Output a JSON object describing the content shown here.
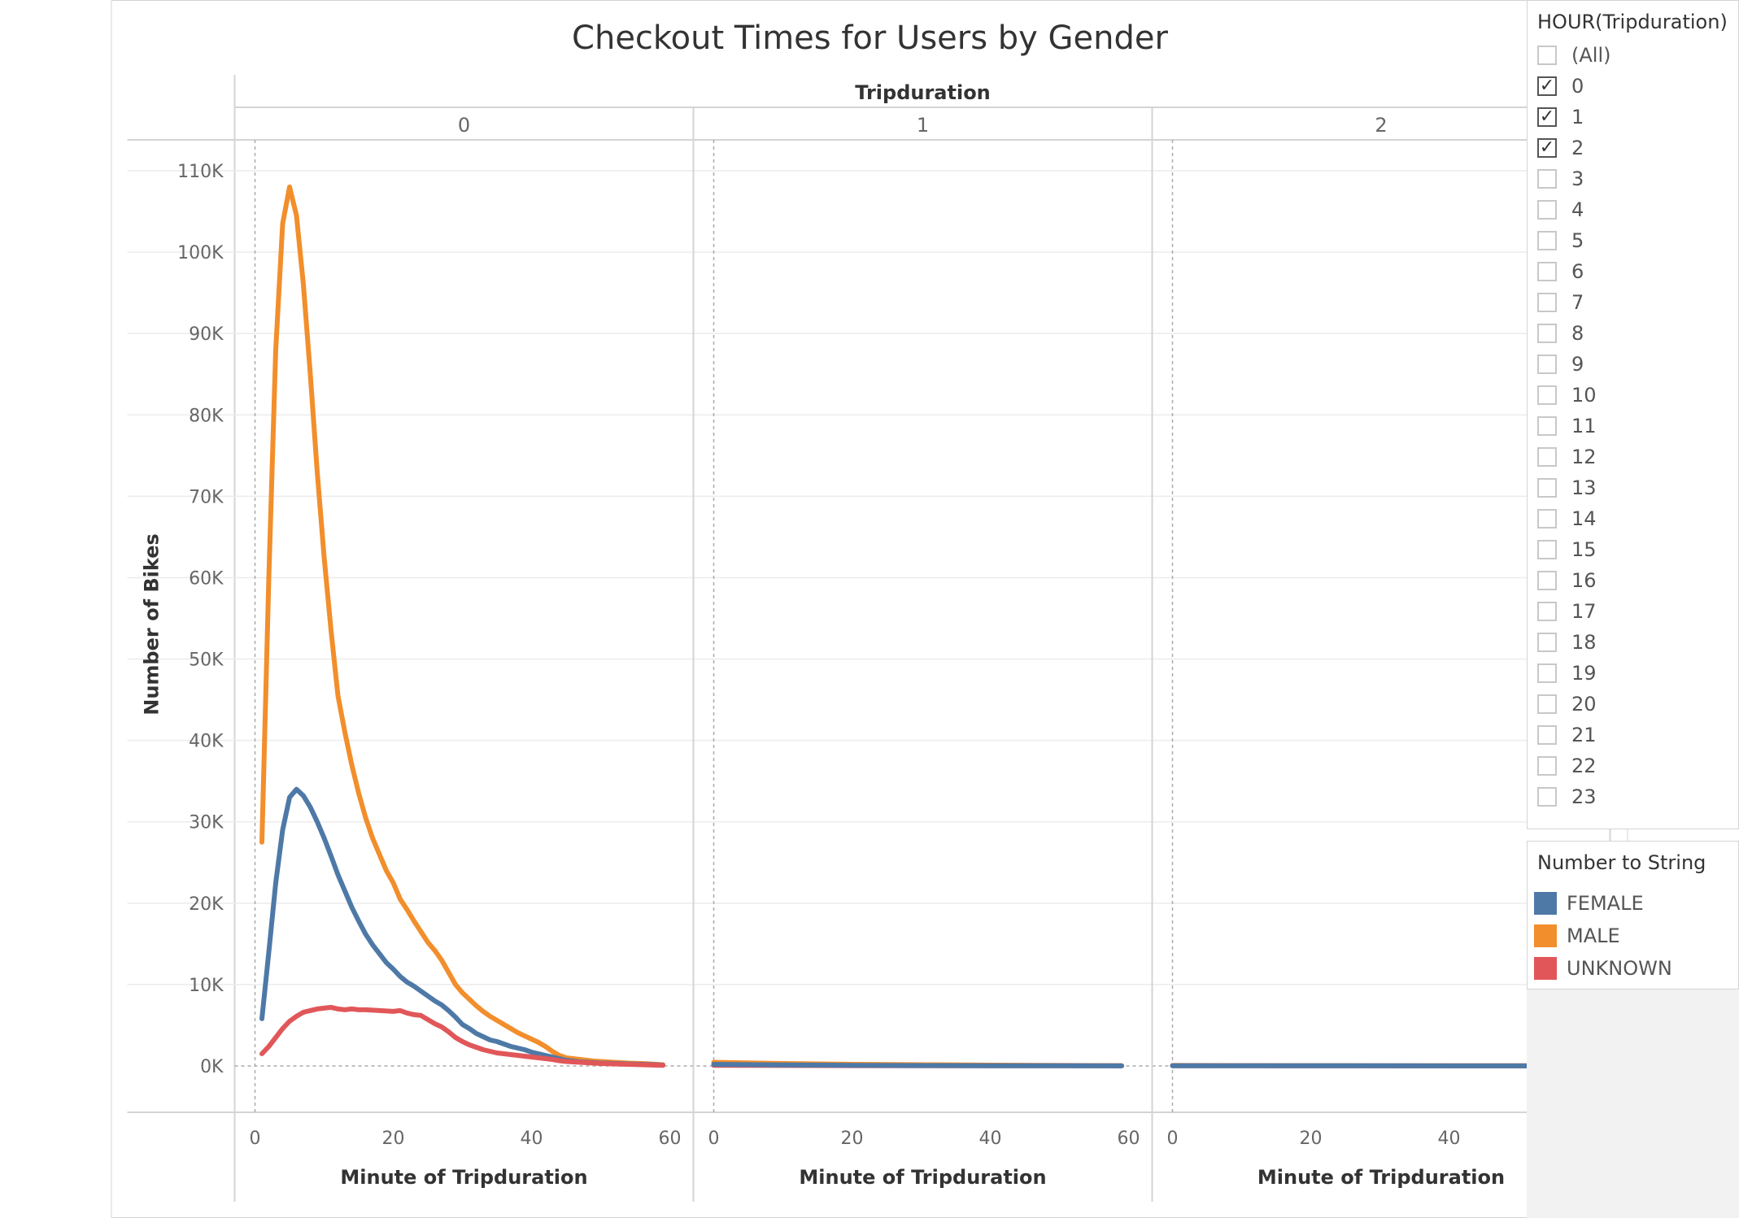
{
  "title": "Checkout Times for Users by Gender",
  "column_header_title": "Tripduration",
  "columns": [
    "0",
    "1",
    "2"
  ],
  "y_axis": {
    "label": "Number of Bikes",
    "ticks": [
      "110K",
      "100K",
      "90K",
      "80K",
      "70K",
      "60K",
      "50K",
      "40K",
      "30K",
      "20K",
      "10K",
      "0K"
    ]
  },
  "x_axis": {
    "label": "Minute of Tripduration",
    "ticks": [
      "0",
      "20",
      "40",
      "60"
    ]
  },
  "filter": {
    "title": "HOUR(Tripduration)",
    "items": [
      {
        "label": "(All)",
        "checked": false
      },
      {
        "label": "0",
        "checked": true
      },
      {
        "label": "1",
        "checked": true
      },
      {
        "label": "2",
        "checked": true
      },
      {
        "label": "3",
        "checked": false
      },
      {
        "label": "4",
        "checked": false
      },
      {
        "label": "5",
        "checked": false
      },
      {
        "label": "6",
        "checked": false
      },
      {
        "label": "7",
        "checked": false
      },
      {
        "label": "8",
        "checked": false
      },
      {
        "label": "9",
        "checked": false
      },
      {
        "label": "10",
        "checked": false
      },
      {
        "label": "11",
        "checked": false
      },
      {
        "label": "12",
        "checked": false
      },
      {
        "label": "13",
        "checked": false
      },
      {
        "label": "14",
        "checked": false
      },
      {
        "label": "15",
        "checked": false
      },
      {
        "label": "16",
        "checked": false
      },
      {
        "label": "17",
        "checked": false
      },
      {
        "label": "18",
        "checked": false
      },
      {
        "label": "19",
        "checked": false
      },
      {
        "label": "20",
        "checked": false
      },
      {
        "label": "21",
        "checked": false
      },
      {
        "label": "22",
        "checked": false
      },
      {
        "label": "23",
        "checked": false
      }
    ],
    "check_glyph": "✓"
  },
  "legend": {
    "title": "Number to String",
    "items": [
      {
        "label": "FEMALE",
        "color": "#4e79a7"
      },
      {
        "label": "MALE",
        "color": "#f28e2b"
      },
      {
        "label": "UNKNOWN",
        "color": "#e15759"
      }
    ]
  },
  "chart_data": {
    "type": "line",
    "title": "Checkout Times for Users by Gender",
    "xlabel": "Minute of Tripduration",
    "ylabel": "Number of Bikes",
    "xlim": [
      0,
      60
    ],
    "ylim": [
      0,
      110000
    ],
    "grid": true,
    "legend_position": "right",
    "panels": [
      {
        "name": "0",
        "series": [
          {
            "name": "MALE",
            "color": "#f28e2b",
            "x": [
              1,
              2,
              3,
              4,
              5,
              6,
              7,
              8,
              9,
              10,
              11,
              12,
              13,
              14,
              15,
              16,
              17,
              18,
              19,
              20,
              21,
              22,
              23,
              24,
              25,
              26,
              27,
              28,
              29,
              30,
              31,
              32,
              33,
              34,
              35,
              36,
              37,
              38,
              39,
              40,
              41,
              42,
              43,
              44,
              45,
              46,
              47,
              48,
              49,
              50,
              52,
              54,
              56,
              58,
              59
            ],
            "y": [
              27500,
              60000,
              88000,
              103500,
              108000,
              104500,
              96000,
              85000,
              73000,
              62500,
              53500,
              45500,
              41000,
              37000,
              33500,
              30500,
              28000,
              26000,
              24000,
              22500,
              20500,
              19200,
              17800,
              16500,
              15200,
              14200,
              13000,
              11500,
              10000,
              9000,
              8200,
              7400,
              6700,
              6100,
              5600,
              5100,
              4600,
              4100,
              3700,
              3300,
              2900,
              2400,
              1800,
              1300,
              1000,
              900,
              800,
              700,
              600,
              550,
              450,
              350,
              300,
              200,
              150
            ]
          },
          {
            "name": "FEMALE",
            "color": "#4e79a7",
            "x": [
              1,
              2,
              3,
              4,
              5,
              6,
              7,
              8,
              9,
              10,
              11,
              12,
              13,
              14,
              15,
              16,
              17,
              18,
              19,
              20,
              21,
              22,
              23,
              24,
              25,
              26,
              27,
              28,
              29,
              30,
              31,
              32,
              33,
              34,
              35,
              36,
              37,
              38,
              39,
              40,
              41,
              42,
              43,
              44,
              45,
              46,
              47,
              48,
              49,
              50,
              52,
              54,
              56,
              58,
              59
            ],
            "y": [
              5800,
              14000,
              22500,
              29000,
              33000,
              34000,
              33200,
              31800,
              30000,
              28000,
              25800,
              23500,
              21500,
              19500,
              17800,
              16200,
              14900,
              13800,
              12700,
              11900,
              11000,
              10300,
              9800,
              9200,
              8600,
              8000,
              7500,
              6800,
              6000,
              5100,
              4600,
              4000,
              3600,
              3200,
              3000,
              2700,
              2400,
              2200,
              2000,
              1700,
              1500,
              1300,
              1100,
              900,
              700,
              600,
              500,
              450,
              400,
              350,
              300,
              250,
              200,
              150,
              100
            ]
          },
          {
            "name": "UNKNOWN",
            "color": "#e15759",
            "x": [
              1,
              2,
              3,
              4,
              5,
              6,
              7,
              8,
              9,
              10,
              11,
              12,
              13,
              14,
              15,
              16,
              17,
              18,
              19,
              20,
              21,
              22,
              23,
              24,
              25,
              26,
              27,
              28,
              29,
              30,
              31,
              32,
              33,
              34,
              35,
              36,
              37,
              38,
              39,
              40,
              41,
              42,
              43,
              44,
              45,
              46,
              47,
              48,
              50,
              52,
              54,
              56,
              58,
              59
            ],
            "y": [
              1500,
              2400,
              3500,
              4600,
              5500,
              6100,
              6600,
              6800,
              7000,
              7100,
              7200,
              7000,
              6900,
              7000,
              6900,
              6900,
              6850,
              6800,
              6750,
              6700,
              6800,
              6500,
              6300,
              6200,
              5700,
              5200,
              4800,
              4200,
              3500,
              3000,
              2600,
              2300,
              2000,
              1800,
              1600,
              1500,
              1400,
              1300,
              1200,
              1100,
              1000,
              900,
              800,
              650,
              550,
              500,
              450,
              400,
              300,
              250,
              200,
              150,
              100,
              80
            ]
          }
        ]
      },
      {
        "name": "1",
        "series": [
          {
            "name": "MALE",
            "color": "#f28e2b",
            "x": [
              0,
              10,
              20,
              30,
              40,
              50,
              59
            ],
            "y": [
              450,
              300,
              200,
              150,
              100,
              60,
              40
            ]
          },
          {
            "name": "UNKNOWN",
            "color": "#e15759",
            "x": [
              0,
              10,
              20,
              30,
              40,
              50,
              59
            ],
            "y": [
              80,
              60,
              40,
              30,
              20,
              15,
              10
            ]
          },
          {
            "name": "FEMALE",
            "color": "#4e79a7",
            "x": [
              0,
              10,
              20,
              30,
              40,
              50,
              59
            ],
            "y": [
              200,
              120,
              80,
              50,
              30,
              20,
              10
            ]
          }
        ]
      },
      {
        "name": "2",
        "series": [
          {
            "name": "MALE",
            "color": "#f28e2b",
            "x": [
              0,
              10,
              20,
              30,
              40,
              50,
              59
            ],
            "y": [
              60,
              50,
              40,
              30,
              20,
              15,
              10
            ]
          },
          {
            "name": "UNKNOWN",
            "color": "#e15759",
            "x": [
              0,
              10,
              20,
              30,
              40,
              50,
              59
            ],
            "y": [
              20,
              15,
              10,
              8,
              6,
              5,
              4
            ]
          },
          {
            "name": "FEMALE",
            "color": "#4e79a7",
            "x": [
              0,
              10,
              20,
              30,
              40,
              50,
              59
            ],
            "y": [
              30,
              25,
              20,
              15,
              10,
              8,
              5
            ]
          }
        ]
      }
    ]
  }
}
